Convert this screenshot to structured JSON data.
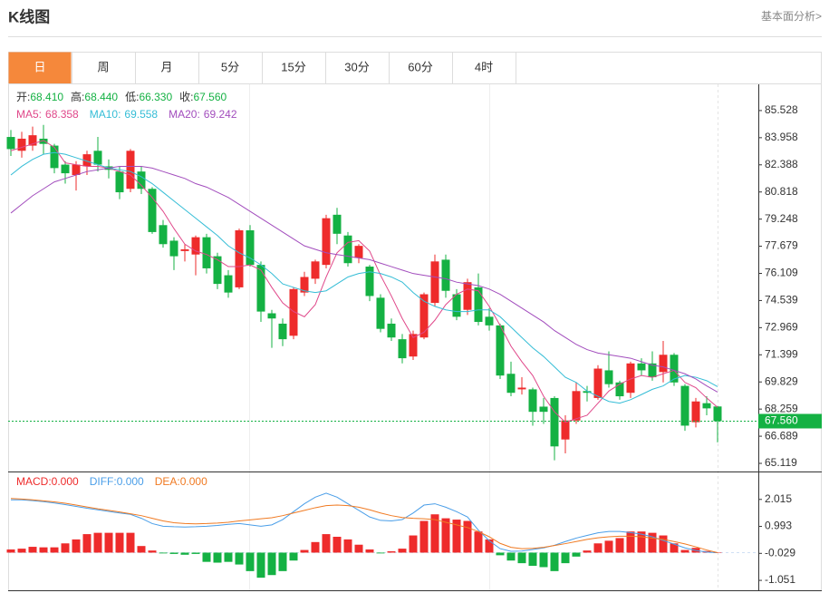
{
  "header": {
    "title": "K线图",
    "link": "基本面分析>"
  },
  "tabs": [
    "日",
    "周",
    "月",
    "5分",
    "15分",
    "30分",
    "60分",
    "4时"
  ],
  "active_tab": 0,
  "chart_data": [
    {
      "type": "candlestick",
      "info": [
        {
          "label": "开:",
          "value": "68.410"
        },
        {
          "label": "高:",
          "value": "68.440"
        },
        {
          "label": "低:",
          "value": "66.330"
        },
        {
          "label": "收:",
          "value": "67.560"
        }
      ],
      "info_color": "#14b143",
      "up_color": "#ee2b2b",
      "down_color": "#14b143",
      "ylim": [
        64.648,
        87.045
      ],
      "yticks": [
        85.528,
        83.958,
        82.388,
        80.818,
        79.248,
        77.679,
        76.109,
        74.539,
        72.969,
        71.399,
        69.829,
        68.259,
        66.689,
        65.119
      ],
      "last_price": {
        "value": 67.56,
        "label": "67.560"
      },
      "open": [
        84.0,
        83.2,
        83.5,
        83.9,
        83.5,
        82.4,
        81.8,
        82.3,
        83.2,
        82.3,
        82.0,
        81.0,
        82.0,
        81.0,
        78.9,
        78.0,
        77.4,
        77.2,
        78.2,
        77.1,
        76.0,
        75.3,
        78.6,
        76.6,
        73.8,
        73.2,
        72.5,
        75.0,
        75.8,
        76.6,
        79.5,
        78.3,
        77.0,
        76.5,
        74.7,
        73.2,
        72.3,
        71.3,
        72.4,
        74.4,
        76.9,
        74.9,
        74.0,
        75.3,
        73.6,
        73.1,
        70.3,
        69.4,
        69.4,
        68.4,
        68.9,
        66.5,
        67.6,
        69.3,
        68.9,
        70.5,
        69.8,
        69.2,
        70.9,
        70.9,
        70.4,
        71.4,
        69.6,
        67.5,
        68.6,
        68.41
      ],
      "high": [
        84.4,
        84.3,
        84.6,
        84.7,
        83.6,
        82.6,
        82.6,
        83.2,
        84.0,
        82.7,
        82.3,
        83.3,
        82.3,
        81.1,
        79.2,
        78.2,
        77.8,
        78.3,
        78.4,
        77.3,
        76.3,
        78.7,
        78.9,
        76.8,
        74.0,
        73.5,
        75.3,
        76.2,
        76.9,
        79.5,
        79.9,
        78.5,
        77.8,
        76.6,
        74.9,
        73.5,
        72.6,
        72.8,
        75.0,
        77.2,
        77.2,
        75.2,
        75.8,
        76.1,
        74.1,
        73.2,
        71.0,
        70.1,
        69.5,
        68.9,
        69.0,
        67.9,
        69.8,
        69.6,
        70.8,
        71.6,
        69.9,
        71.0,
        71.2,
        71.6,
        72.2,
        71.5,
        69.7,
        68.9,
        69.0,
        68.44
      ],
      "low": [
        82.9,
        82.8,
        83.2,
        83.0,
        81.9,
        81.3,
        80.9,
        81.8,
        82.0,
        81.6,
        80.4,
        80.8,
        80.7,
        78.4,
        77.6,
        76.3,
        76.8,
        76.0,
        76.1,
        75.2,
        74.7,
        75.2,
        76.5,
        73.3,
        71.8,
        71.9,
        72.3,
        74.8,
        75.5,
        76.4,
        77.8,
        76.5,
        76.7,
        74.5,
        72.7,
        72.2,
        70.9,
        71.1,
        72.3,
        74.2,
        74.7,
        73.4,
        73.7,
        73.1,
        72.8,
        70.0,
        69.0,
        69.1,
        67.3,
        67.4,
        65.3,
        65.7,
        67.4,
        68.7,
        68.8,
        69.5,
        68.8,
        68.9,
        70.2,
        69.9,
        69.8,
        69.6,
        67.0,
        67.2,
        67.9,
        66.33
      ],
      "close": [
        83.3,
        83.9,
        84.1,
        83.6,
        82.2,
        81.9,
        82.4,
        83.0,
        82.4,
        82.1,
        80.8,
        83.2,
        81.0,
        78.5,
        77.8,
        77.1,
        77.5,
        78.2,
        76.4,
        75.5,
        75.0,
        78.6,
        76.6,
        73.9,
        73.5,
        72.3,
        75.2,
        75.9,
        76.8,
        79.3,
        78.4,
        76.7,
        77.7,
        74.8,
        72.9,
        72.4,
        71.2,
        72.6,
        74.9,
        76.8,
        75.1,
        73.6,
        75.6,
        73.3,
        73.1,
        70.2,
        69.2,
        69.5,
        68.1,
        68.1,
        66.1,
        67.6,
        69.3,
        69.2,
        70.6,
        69.7,
        69.0,
        70.9,
        70.5,
        70.1,
        71.4,
        69.8,
        67.3,
        68.7,
        68.3,
        67.56
      ],
      "series": [
        {
          "name": "MA5:",
          "color": "#e0488a",
          "values": [
            83.2,
            83.4,
            83.6,
            83.8,
            83.4,
            82.5,
            82.4,
            82.3,
            82.3,
            82.2,
            82.0,
            81.8,
            81.2,
            80.5,
            79.7,
            78.7,
            77.8,
            77.4,
            77.2,
            76.9,
            76.5,
            76.5,
            76.6,
            76.3,
            75.3,
            74.4,
            73.9,
            73.6,
            74.3,
            75.9,
            77.3,
            77.9,
            78.0,
            77.4,
            76.0,
            74.8,
            73.5,
            72.4,
            72.7,
            73.4,
            74.3,
            74.9,
            75.2,
            75.1,
            74.2,
            73.1,
            71.9,
            71.0,
            70.2,
            69.0,
            68.1,
            67.5,
            67.7,
            67.9,
            68.6,
            69.3,
            69.7,
            70.0,
            70.2,
            70.1,
            70.3,
            70.5,
            69.8,
            69.5,
            68.9,
            68.358
          ]
        },
        {
          "name": "MA10:",
          "color": "#35bdd6",
          "values": [
            81.8,
            82.3,
            82.7,
            83.0,
            83.1,
            83.0,
            82.8,
            82.6,
            82.4,
            82.2,
            82.1,
            82.0,
            81.7,
            81.3,
            80.8,
            80.3,
            79.8,
            79.3,
            78.8,
            78.3,
            77.7,
            77.3,
            77.0,
            76.6,
            76.1,
            75.5,
            75.3,
            75.1,
            75.0,
            75.1,
            75.5,
            75.9,
            76.1,
            76.2,
            76.1,
            75.9,
            75.6,
            75.0,
            74.5,
            74.2,
            74.0,
            73.9,
            73.9,
            74.0,
            74.0,
            73.6,
            73.0,
            72.4,
            71.8,
            71.3,
            70.7,
            70.1,
            69.8,
            69.3,
            69.0,
            68.7,
            68.6,
            68.8,
            69.1,
            69.4,
            69.6,
            70.0,
            70.2,
            70.1,
            69.9,
            69.558
          ]
        },
        {
          "name": "MA20:",
          "color": "#a24dbd",
          "values": [
            79.6,
            80.1,
            80.6,
            81.0,
            81.4,
            81.6,
            81.8,
            82.0,
            82.1,
            82.2,
            82.3,
            82.3,
            82.3,
            82.2,
            82.0,
            81.8,
            81.6,
            81.3,
            81.1,
            80.8,
            80.5,
            80.1,
            79.7,
            79.3,
            78.9,
            78.5,
            78.1,
            77.7,
            77.5,
            77.3,
            77.2,
            77.1,
            77.0,
            76.9,
            76.7,
            76.5,
            76.3,
            76.1,
            76.0,
            75.9,
            75.8,
            75.6,
            75.5,
            75.4,
            75.2,
            74.9,
            74.5,
            74.1,
            73.7,
            73.3,
            72.8,
            72.4,
            72.0,
            71.7,
            71.5,
            71.4,
            71.3,
            71.2,
            71.0,
            70.8,
            70.7,
            70.5,
            70.3,
            70.0,
            69.6,
            69.242
          ]
        }
      ]
    },
    {
      "type": "macd",
      "ylim": [
        -1.426,
        3.003
      ],
      "yticks": [
        2.015,
        0.993,
        -0.029,
        -1.051
      ],
      "up_color": "#ee2b2b",
      "down_color": "#14b143",
      "series": [
        {
          "name": "MACD:",
          "current_label": "0.000",
          "color": "#ee2b2b",
          "values": [
            0.12,
            0.15,
            0.22,
            0.2,
            0.2,
            0.35,
            0.5,
            0.7,
            0.75,
            0.75,
            0.75,
            0.75,
            0.25,
            0.08,
            -0.03,
            -0.05,
            -0.08,
            -0.05,
            -0.35,
            -0.38,
            -0.35,
            -0.45,
            -0.7,
            -0.95,
            -0.85,
            -0.7,
            -0.3,
            0.1,
            0.4,
            0.7,
            0.6,
            0.5,
            0.3,
            0.12,
            -0.03,
            0.05,
            0.15,
            0.65,
            1.2,
            1.45,
            1.3,
            1.25,
            1.2,
            0.8,
            0.5,
            -0.1,
            -0.3,
            -0.4,
            -0.5,
            -0.55,
            -0.7,
            -0.4,
            -0.15,
            0.08,
            0.35,
            0.45,
            0.55,
            0.8,
            0.8,
            0.75,
            0.65,
            0.35,
            0.1,
            0.18,
            0.06,
            0
          ]
        },
        {
          "name": "DIFF:",
          "current_label": "0.000",
          "color": "#4a9ee8",
          "values": [
            2.0,
            2.0,
            1.97,
            1.93,
            1.88,
            1.82,
            1.75,
            1.68,
            1.62,
            1.56,
            1.5,
            1.45,
            1.3,
            1.1,
            1.0,
            0.98,
            0.97,
            0.98,
            1.0,
            1.03,
            1.07,
            1.1,
            1.05,
            1.0,
            1.05,
            1.25,
            1.55,
            1.85,
            2.1,
            2.25,
            2.1,
            1.85,
            1.6,
            1.35,
            1.22,
            1.2,
            1.25,
            1.5,
            1.8,
            1.85,
            1.72,
            1.55,
            1.35,
            0.85,
            0.45,
            0.15,
            0.05,
            0.06,
            0.12,
            0.18,
            0.28,
            0.42,
            0.55,
            0.65,
            0.75,
            0.8,
            0.8,
            0.76,
            0.7,
            0.6,
            0.46,
            0.32,
            0.18,
            0.08,
            0.02,
            0
          ]
        },
        {
          "name": "DEA:",
          "current_label": "0.000",
          "color": "#f07a22",
          "values": [
            2.05,
            2.03,
            2.0,
            1.96,
            1.92,
            1.87,
            1.8,
            1.73,
            1.66,
            1.6,
            1.54,
            1.47,
            1.4,
            1.3,
            1.2,
            1.13,
            1.1,
            1.09,
            1.1,
            1.12,
            1.15,
            1.2,
            1.24,
            1.28,
            1.32,
            1.4,
            1.5,
            1.6,
            1.7,
            1.78,
            1.8,
            1.78,
            1.72,
            1.62,
            1.5,
            1.4,
            1.33,
            1.3,
            1.28,
            1.25,
            1.15,
            1.05,
            0.95,
            0.8,
            0.6,
            0.35,
            0.2,
            0.15,
            0.16,
            0.2,
            0.27,
            0.34,
            0.42,
            0.5,
            0.56,
            0.6,
            0.62,
            0.62,
            0.6,
            0.55,
            0.5,
            0.42,
            0.33,
            0.22,
            0.1,
            0
          ]
        }
      ]
    }
  ]
}
